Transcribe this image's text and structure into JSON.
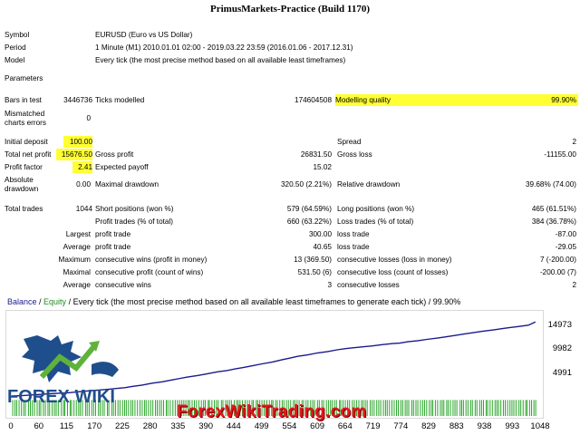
{
  "report": {
    "title": "PrimusMarkets-Practice (Build 1170)",
    "symbol_label": "Symbol",
    "symbol_value": "EURUSD (Euro vs US Dollar)",
    "period_label": "Period",
    "period_value": "1 Minute (M1) 2010.01.01 02:00 - 2019.03.22 23:59 (2016.01.06 - 2017.12.31)",
    "model_label": "Model",
    "model_value": "Every tick (the most precise method based on all available least timeframes)",
    "parameters_label": "Parameters"
  },
  "stats": {
    "bars_label": "Bars in test",
    "bars_value": "3446736",
    "ticks_label": "Ticks modelled",
    "ticks_value": "174604508",
    "mq_label": "Modelling quality",
    "mq_value": "99.90%",
    "mismatch_label_1": "Mismatched",
    "mismatch_label_2": "charts errors",
    "mismatch_value": "0",
    "initial_deposit_label": "Initial deposit",
    "initial_deposit_value": "100.00",
    "spread_label": "Spread",
    "spread_value": "2",
    "net_profit_label": "Total net profit",
    "net_profit_value": "15676.50",
    "gross_profit_label": "Gross profit",
    "gross_profit_value": "26831.50",
    "gross_loss_label": "Gross loss",
    "gross_loss_value": "-11155.00",
    "profit_factor_label": "Profit factor",
    "profit_factor_value": "2.41",
    "expected_payoff_label": "Expected payoff",
    "expected_payoff_value": "15.02",
    "abs_dd_label_1": "Absolute",
    "abs_dd_label_2": "drawdown",
    "abs_dd_value": "0.00",
    "max_dd_label": "Maximal drawdown",
    "max_dd_value": "320.50 (2.21%)",
    "rel_dd_label": "Relative drawdown",
    "rel_dd_value": "39.68% (74.00)",
    "total_trades_label": "Total trades",
    "total_trades_value": "1044",
    "short_label": "Short positions (won %)",
    "short_value": "579 (64.59%)",
    "long_label": "Long positions (won %)",
    "long_value": "465 (61.51%)",
    "profit_trades_label": "Profit trades (% of total)",
    "profit_trades_value": "660 (63.22%)",
    "loss_trades_label": "Loss trades (% of total)",
    "loss_trades_value": "384 (36.78%)",
    "largest_label": "Largest",
    "largest_profit_label": "profit trade",
    "largest_profit_value": "300.00",
    "largest_loss_label": "loss trade",
    "largest_loss_value": "-87.00",
    "average_label": "Average",
    "average_profit_label": "profit trade",
    "average_profit_value": "40.65",
    "average_loss_label": "loss trade",
    "average_loss_value": "-29.05",
    "maximum_label": "Maximum",
    "max_cons_wins_label": "consecutive wins (profit in money)",
    "max_cons_wins_value": "13 (369.50)",
    "max_cons_losses_label": "consecutive losses (loss in money)",
    "max_cons_losses_value": "7 (-200.00)",
    "maximal_label": "Maximal",
    "maximal_cons_profit_label": "consecutive profit (count of wins)",
    "maximal_cons_profit_value": "531.50 (6)",
    "maximal_cons_loss_label": "consecutive loss (count of losses)",
    "maximal_cons_loss_value": "-200.00 (7)",
    "avg_cons_label": "Average",
    "avg_cons_wins_label": "consecutive wins",
    "avg_cons_wins_value": "3",
    "avg_cons_losses_label": "consecutive losses",
    "avg_cons_losses_value": "2"
  },
  "chart": {
    "legend_balance": "Balance",
    "legend_sep": " / ",
    "legend_equity": "Equity",
    "legend_rest": " / Every tick (the most precise method based on all available least timeframes to generate each tick) / 99.90%",
    "watermark": "ForexWikiTrading.com",
    "logo_text": "FOREX WIKI",
    "colors": {
      "balance": "#1a1a8c",
      "equity": "#1e8c1e",
      "volume": "#2aa52a",
      "watermark": "#e6161b"
    }
  },
  "chart_data": {
    "type": "line",
    "title": "Balance / Equity / Every tick (the most precise method based on all available least timeframes to generate each tick) / 99.90%",
    "xlabel": "",
    "ylabel": "",
    "x_ticks": [
      "0",
      "60",
      "115",
      "170",
      "225",
      "280",
      "335",
      "390",
      "444",
      "499",
      "554",
      "609",
      "664",
      "719",
      "774",
      "829",
      "883",
      "938",
      "993",
      "1048"
    ],
    "y_ticks": [
      "4991",
      "9982",
      "14973"
    ],
    "xlim": [
      0,
      1048
    ],
    "ylim": [
      0,
      17000
    ],
    "series": [
      {
        "name": "Balance",
        "x": [
          0,
          20,
          40,
          60,
          80,
          100,
          115,
          130,
          150,
          170,
          190,
          210,
          225,
          240,
          260,
          280,
          300,
          320,
          335,
          350,
          370,
          390,
          410,
          430,
          444,
          460,
          480,
          499,
          520,
          540,
          554,
          570,
          590,
          609,
          630,
          650,
          664,
          680,
          700,
          719,
          740,
          760,
          774,
          790,
          810,
          829,
          850,
          870,
          883,
          900,
          920,
          938,
          960,
          980,
          993,
          1010,
          1030,
          1044
        ],
        "y": [
          100,
          150,
          300,
          450,
          600,
          700,
          800,
          950,
          1150,
          1300,
          1500,
          1700,
          1850,
          2100,
          2400,
          2800,
          3100,
          3500,
          3800,
          4100,
          4400,
          4800,
          5200,
          5500,
          5800,
          6100,
          6500,
          6900,
          7300,
          7800,
          8100,
          8500,
          8800,
          9200,
          9500,
          9900,
          10100,
          10300,
          10500,
          10700,
          11000,
          11200,
          11300,
          11600,
          11800,
          12100,
          12400,
          12700,
          12900,
          13200,
          13500,
          13800,
          14100,
          14400,
          14600,
          14800,
          15100,
          15776
        ]
      }
    ]
  }
}
